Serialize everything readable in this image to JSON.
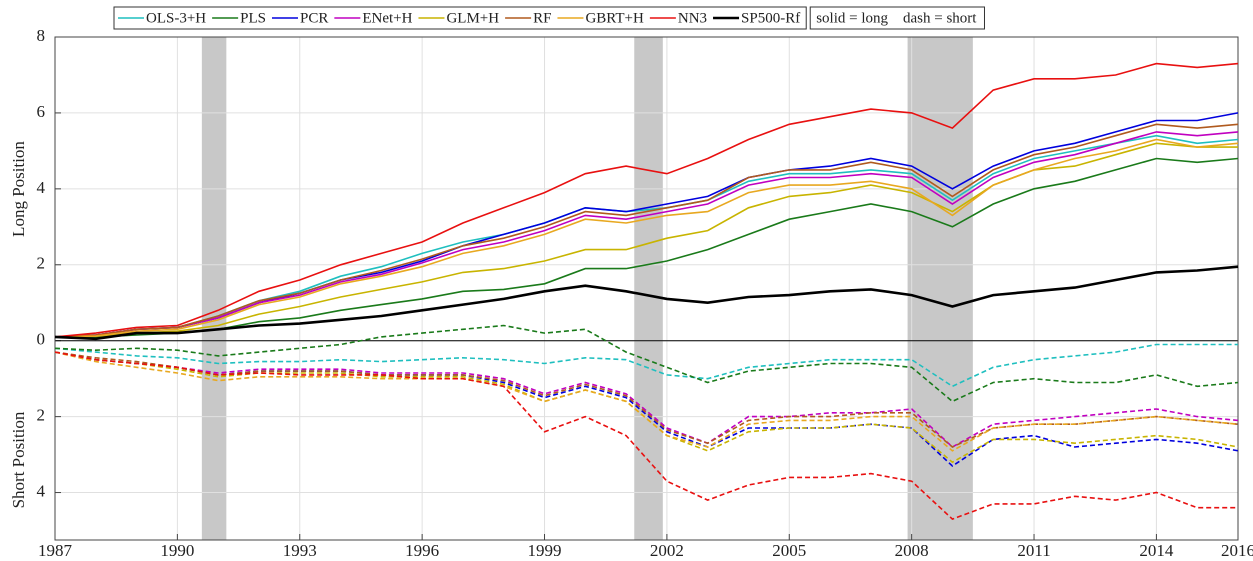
{
  "chart_data": {
    "type": "line",
    "y_label_top": "Long Position",
    "y_label_bottom": "Short Position",
    "legend_note": "solid = long    dash = short",
    "x": [
      1987,
      1988,
      1989,
      1990,
      1991,
      1992,
      1993,
      1994,
      1995,
      1996,
      1997,
      1998,
      1999,
      2000,
      2001,
      2002,
      2003,
      2004,
      2005,
      2006,
      2007,
      2008,
      2009,
      2010,
      2011,
      2012,
      2013,
      2014,
      2015,
      2016
    ],
    "xlim": [
      1987,
      2016
    ],
    "xticks": [
      1987,
      1990,
      1993,
      1996,
      1999,
      2002,
      2005,
      2008,
      2011,
      2014,
      2016
    ],
    "ylim": [
      -5.25,
      8
    ],
    "yticks": [
      8,
      6,
      4,
      2,
      0,
      {
        "value": -2,
        "label": "2"
      },
      {
        "value": -4,
        "label": "4"
      }
    ],
    "grid": true,
    "shaded_regions": [
      [
        1990.6,
        1991.2
      ],
      [
        2001.2,
        2001.9
      ],
      [
        2007.9,
        2009.5
      ]
    ],
    "shade_color": "#c8c8c8",
    "series": [
      {
        "name": "OLS-3+H",
        "color": "#1fbfbf",
        "values": [
          0.1,
          0.15,
          0.3,
          0.35,
          0.65,
          1.05,
          1.3,
          1.7,
          1.95,
          2.3,
          2.6,
          2.8,
          3.1,
          3.5,
          3.4,
          3.5,
          3.7,
          4.2,
          4.4,
          4.4,
          4.5,
          4.4,
          3.7,
          4.4,
          4.8,
          5.0,
          5.2,
          5.4,
          5.2,
          5.3
        ],
        "short_values": [
          -0.2,
          -0.3,
          -0.4,
          -0.45,
          -0.6,
          -0.55,
          -0.55,
          -0.5,
          -0.55,
          -0.5,
          -0.45,
          -0.5,
          -0.6,
          -0.45,
          -0.5,
          -0.9,
          -1.0,
          -0.7,
          -0.6,
          -0.5,
          -0.5,
          -0.5,
          -1.2,
          -0.7,
          -0.5,
          -0.4,
          -0.3,
          -0.1,
          -0.1,
          -0.1
        ]
      },
      {
        "name": "PLS",
        "color": "#1a7a1a",
        "values": [
          0.1,
          0.1,
          0.15,
          0.2,
          0.3,
          0.5,
          0.6,
          0.8,
          0.95,
          1.1,
          1.3,
          1.35,
          1.5,
          1.9,
          1.9,
          2.1,
          2.4,
          2.8,
          3.2,
          3.4,
          3.6,
          3.4,
          3.0,
          3.6,
          4.0,
          4.2,
          4.5,
          4.8,
          4.7,
          4.8
        ],
        "short_values": [
          -0.2,
          -0.25,
          -0.2,
          -0.25,
          -0.4,
          -0.3,
          -0.2,
          -0.1,
          0.1,
          0.2,
          0.3,
          0.4,
          0.2,
          0.3,
          -0.3,
          -0.7,
          -1.1,
          -0.8,
          -0.7,
          -0.6,
          -0.6,
          -0.7,
          -1.6,
          -1.1,
          -1.0,
          -1.1,
          -1.1,
          -0.9,
          -1.2,
          -1.1
        ]
      },
      {
        "name": "PCR",
        "color": "#0000dd",
        "values": [
          0.1,
          0.15,
          0.3,
          0.35,
          0.6,
          1.0,
          1.25,
          1.6,
          1.8,
          2.1,
          2.5,
          2.8,
          3.1,
          3.5,
          3.4,
          3.6,
          3.8,
          4.3,
          4.5,
          4.6,
          4.8,
          4.6,
          4.0,
          4.6,
          5.0,
          5.2,
          5.5,
          5.8,
          5.8,
          6.0
        ],
        "short_values": [
          -0.3,
          -0.5,
          -0.6,
          -0.7,
          -0.9,
          -0.8,
          -0.8,
          -0.8,
          -0.9,
          -0.9,
          -0.9,
          -1.1,
          -1.5,
          -1.2,
          -1.5,
          -2.4,
          -2.8,
          -2.3,
          -2.3,
          -2.3,
          -2.2,
          -2.3,
          -3.3,
          -2.6,
          -2.5,
          -2.8,
          -2.7,
          -2.6,
          -2.7,
          -2.9
        ]
      },
      {
        "name": "ENet+H",
        "color": "#c000c0",
        "values": [
          0.1,
          0.15,
          0.3,
          0.35,
          0.6,
          1.0,
          1.2,
          1.55,
          1.75,
          2.05,
          2.4,
          2.6,
          2.9,
          3.3,
          3.2,
          3.4,
          3.6,
          4.1,
          4.3,
          4.3,
          4.4,
          4.3,
          3.6,
          4.3,
          4.7,
          4.9,
          5.2,
          5.5,
          5.4,
          5.5
        ],
        "short_values": [
          -0.3,
          -0.5,
          -0.6,
          -0.7,
          -0.85,
          -0.75,
          -0.75,
          -0.75,
          -0.85,
          -0.85,
          -0.85,
          -1.0,
          -1.4,
          -1.1,
          -1.4,
          -2.3,
          -2.7,
          -2.0,
          -2.0,
          -1.9,
          -1.9,
          -1.8,
          -2.8,
          -2.2,
          -2.1,
          -2.0,
          -1.9,
          -1.8,
          -2.0,
          -2.1
        ]
      },
      {
        "name": "GLM+H",
        "color": "#c8b400",
        "values": [
          0.1,
          0.12,
          0.2,
          0.25,
          0.4,
          0.7,
          0.9,
          1.15,
          1.35,
          1.55,
          1.8,
          1.9,
          2.1,
          2.4,
          2.4,
          2.7,
          2.9,
          3.5,
          3.8,
          3.9,
          4.1,
          3.9,
          3.4,
          4.1,
          4.5,
          4.6,
          4.9,
          5.2,
          5.1,
          5.1
        ],
        "short_values": [
          -0.3,
          -0.5,
          -0.6,
          -0.75,
          -0.95,
          -0.85,
          -0.85,
          -0.85,
          -0.95,
          -0.95,
          -0.95,
          -1.15,
          -1.6,
          -1.3,
          -1.6,
          -2.5,
          -2.9,
          -2.4,
          -2.3,
          -2.3,
          -2.2,
          -2.3,
          -3.2,
          -2.6,
          -2.6,
          -2.7,
          -2.6,
          -2.5,
          -2.6,
          -2.8
        ]
      },
      {
        "name": "RF",
        "color": "#b05a1e",
        "values": [
          0.1,
          0.15,
          0.3,
          0.35,
          0.65,
          1.05,
          1.25,
          1.6,
          1.85,
          2.15,
          2.5,
          2.7,
          3.0,
          3.4,
          3.3,
          3.5,
          3.7,
          4.3,
          4.5,
          4.5,
          4.7,
          4.5,
          3.8,
          4.5,
          4.9,
          5.1,
          5.4,
          5.7,
          5.6,
          5.7
        ],
        "short_values": [
          -0.3,
          -0.45,
          -0.55,
          -0.7,
          -0.9,
          -0.8,
          -0.8,
          -0.8,
          -0.9,
          -0.9,
          -0.9,
          -1.05,
          -1.45,
          -1.15,
          -1.45,
          -2.35,
          -2.7,
          -2.1,
          -2.0,
          -2.0,
          -1.9,
          -1.9,
          -2.8,
          -2.3,
          -2.2,
          -2.2,
          -2.1,
          -2.0,
          -2.1,
          -2.2
        ]
      },
      {
        "name": "GBRT+H",
        "color": "#e8a820",
        "values": [
          0.1,
          0.12,
          0.25,
          0.3,
          0.55,
          0.95,
          1.15,
          1.5,
          1.7,
          1.95,
          2.3,
          2.5,
          2.8,
          3.2,
          3.1,
          3.3,
          3.4,
          3.9,
          4.1,
          4.1,
          4.2,
          4.0,
          3.3,
          4.1,
          4.5,
          4.8,
          5.0,
          5.3,
          5.1,
          5.2
        ],
        "short_values": [
          -0.3,
          -0.55,
          -0.7,
          -0.85,
          -1.05,
          -0.95,
          -0.95,
          -0.95,
          -1.0,
          -1.0,
          -1.0,
          -1.2,
          -1.6,
          -1.3,
          -1.6,
          -2.5,
          -2.8,
          -2.2,
          -2.1,
          -2.1,
          -2.0,
          -2.0,
          -2.9,
          -2.3,
          -2.2,
          -2.2,
          -2.1,
          -2.0,
          -2.1,
          -2.2
        ]
      },
      {
        "name": "NN3",
        "color": "#e81010",
        "values": [
          0.1,
          0.2,
          0.35,
          0.4,
          0.8,
          1.3,
          1.6,
          2.0,
          2.3,
          2.6,
          3.1,
          3.5,
          3.9,
          4.4,
          4.6,
          4.4,
          4.8,
          5.3,
          5.7,
          5.9,
          6.1,
          6.0,
          5.6,
          6.6,
          6.9,
          6.9,
          7.0,
          7.3,
          7.2,
          7.3
        ],
        "short_values": [
          -0.3,
          -0.5,
          -0.6,
          -0.7,
          -0.9,
          -0.85,
          -0.9,
          -0.9,
          -0.9,
          -1.0,
          -1.0,
          -1.2,
          -2.4,
          -2.0,
          -2.5,
          -3.7,
          -4.2,
          -3.8,
          -3.6,
          -3.6,
          -3.5,
          -3.7,
          -4.7,
          -4.3,
          -4.3,
          -4.1,
          -4.2,
          -4.0,
          -4.4,
          -4.4
        ]
      },
      {
        "name": "SP500-Rf",
        "color": "#000000",
        "values": [
          0.1,
          0.05,
          0.2,
          0.2,
          0.3,
          0.4,
          0.45,
          0.55,
          0.65,
          0.8,
          0.95,
          1.1,
          1.3,
          1.45,
          1.3,
          1.1,
          1.0,
          1.15,
          1.2,
          1.3,
          1.35,
          1.2,
          0.9,
          1.2,
          1.3,
          1.4,
          1.6,
          1.8,
          1.85,
          1.95
        ]
      }
    ]
  }
}
